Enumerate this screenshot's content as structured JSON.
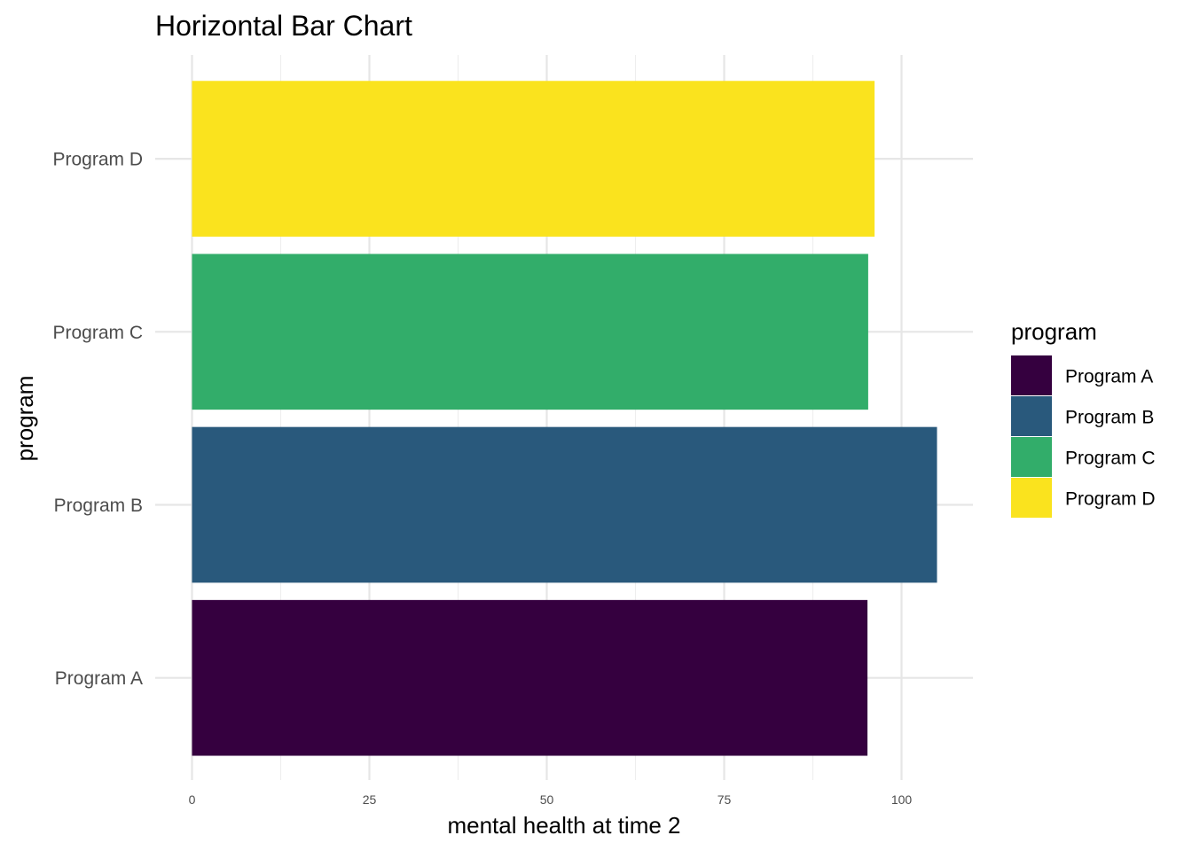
{
  "chart_data": {
    "type": "bar",
    "orientation": "horizontal",
    "title": "Horizontal Bar Chart",
    "xlabel": "mental health at time 2",
    "ylabel": "program",
    "categories": [
      "Program A",
      "Program B",
      "Program C",
      "Program D"
    ],
    "values": [
      95.2,
      105.0,
      95.3,
      96.2
    ],
    "colors": [
      "#35003F",
      "#29597C",
      "#32AD6A",
      "#FAE31E"
    ],
    "xlim": [
      0,
      110
    ],
    "x_ticks": [
      0,
      25,
      50,
      75,
      100
    ],
    "x_tick_labels": [
      "0",
      "25",
      "50",
      "75",
      "100"
    ],
    "grid": true,
    "legend": {
      "title": "program",
      "placement": "right",
      "entries": [
        "Program A",
        "Program B",
        "Program C",
        "Program D"
      ]
    }
  }
}
